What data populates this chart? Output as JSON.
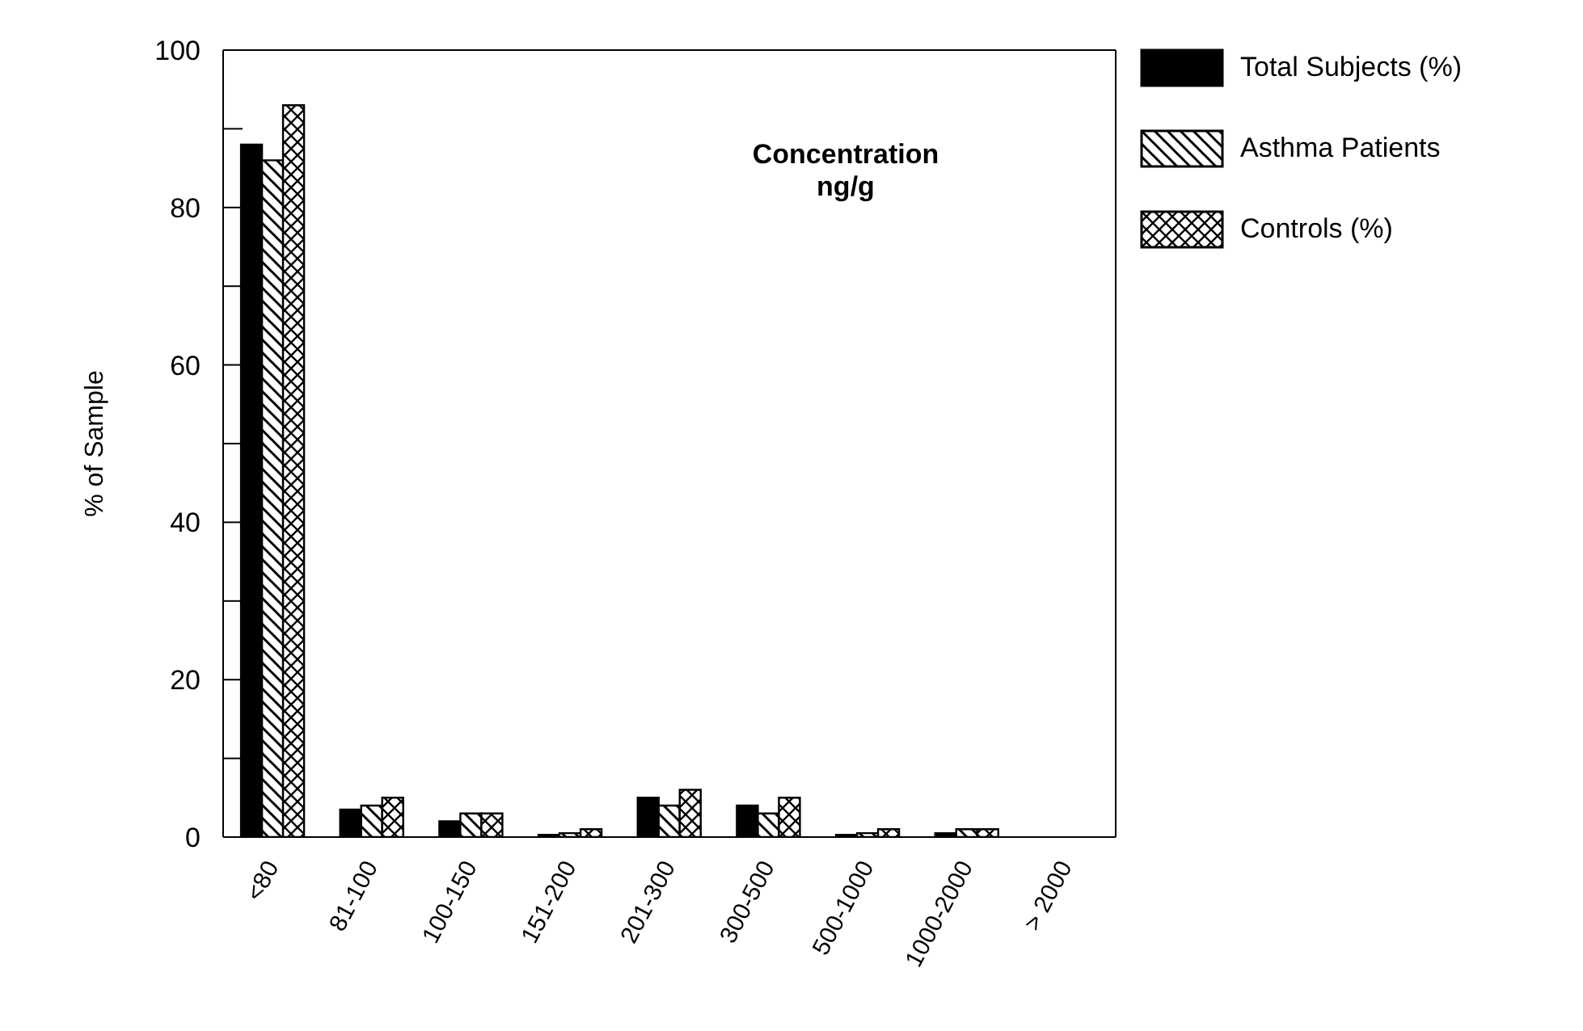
{
  "chart_data": {
    "type": "bar",
    "ylabel": "% of Sample",
    "annotations": [
      "Concentration ng/g"
    ],
    "categories": [
      "<80",
      "81-100",
      "100-150",
      "151-200",
      "201-300",
      "300-500",
      "500-1000",
      "1000-2000",
      "> 2000"
    ],
    "series": [
      {
        "name": "Total Subjects (%)",
        "color": "#000000",
        "values": [
          88,
          3.5,
          2,
          0.3,
          5,
          4,
          0.3,
          0.5,
          0
        ]
      },
      {
        "name": "Asthma Patients",
        "color": "#000000",
        "values": [
          86,
          4,
          3,
          0.5,
          4,
          3,
          0.5,
          1,
          0
        ]
      },
      {
        "name": "Controls (%)",
        "color": "#000000",
        "values": [
          93,
          5,
          3,
          1,
          6,
          5,
          1,
          1,
          0
        ]
      }
    ],
    "ylim": [
      0,
      100
    ],
    "yticks": [
      0,
      {
        "value": 10,
        "label": null
      },
      20,
      {
        "value": 30,
        "label": null
      },
      40,
      {
        "value": 50,
        "label": null
      },
      60,
      {
        "value": 70,
        "label": null
      },
      80,
      {
        "value": 90,
        "label": null
      },
      100
    ],
    "grid": false,
    "legend": "top right"
  }
}
